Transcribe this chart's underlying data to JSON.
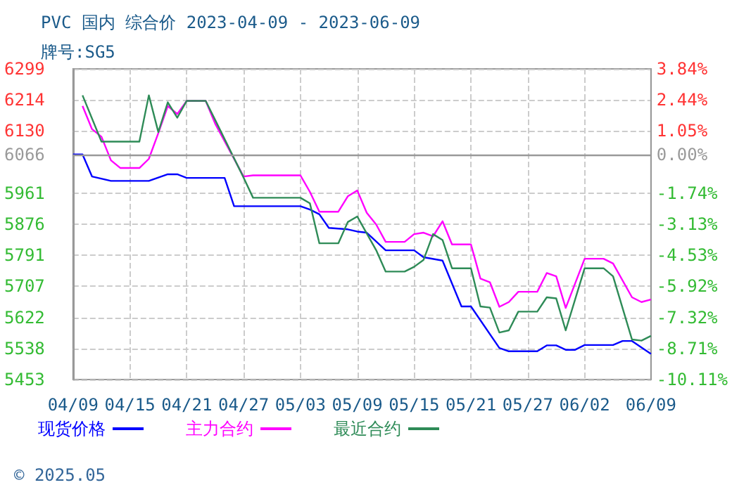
{
  "chart_data": {
    "type": "line",
    "title": "PVC 国内 综合价 2023-04-09 - 2023-06-09",
    "subtitle": "牌号:SG5",
    "xlim": [
      "2023-04-09",
      "2023-06-09"
    ],
    "xticks": [
      {
        "value": "2023-04-09",
        "label": "04/09"
      },
      {
        "value": "2023-04-15",
        "label": "04/15"
      },
      {
        "value": "2023-04-21",
        "label": "04/21"
      },
      {
        "value": "2023-04-27",
        "label": "04/27"
      },
      {
        "value": "2023-05-03",
        "label": "05/03"
      },
      {
        "value": "2023-05-09",
        "label": "05/09"
      },
      {
        "value": "2023-05-15",
        "label": "05/15"
      },
      {
        "value": "2023-05-21",
        "label": "05/21"
      },
      {
        "value": "2023-05-27",
        "label": "05/27"
      },
      {
        "value": "2023-06-02",
        "label": "06/02"
      },
      {
        "value": "2023-06-09",
        "label": "06/09"
      }
    ],
    "ylim": [
      5453,
      6299
    ],
    "yticks": [
      5453,
      5538,
      5622,
      5707,
      5791,
      5876,
      5961,
      6066,
      6130,
      6214,
      6299
    ],
    "y2lim": [
      -10.11,
      3.84
    ],
    "y2ticks": [
      {
        "value": -10.11,
        "label": "-10.11%"
      },
      {
        "value": -8.71,
        "label": "-8.71%"
      },
      {
        "value": -7.32,
        "label": "-7.32%"
      },
      {
        "value": -5.92,
        "label": "-5.92%"
      },
      {
        "value": -4.53,
        "label": "-4.53%"
      },
      {
        "value": -3.13,
        "label": "-3.13%"
      },
      {
        "value": -1.74,
        "label": "-1.74%"
      },
      {
        "value": 0,
        "label": "0.00%"
      },
      {
        "value": 1.05,
        "label": "1.05%"
      },
      {
        "value": 2.44,
        "label": "2.44%"
      },
      {
        "value": 3.84,
        "label": "3.84%"
      }
    ],
    "ref_lines": [
      {
        "axis": "y",
        "value": 6066,
        "color": "#999999"
      }
    ],
    "grid": true,
    "legend": "bottom",
    "marker": "none",
    "line_style": "solid",
    "annotations": [
      "© 2025.05"
    ],
    "series": [
      {
        "name": "现货价格",
        "color": "#0000ff",
        "x": [
          "2023-04-09",
          "2023-04-10",
          "2023-04-11",
          "2023-04-13",
          "2023-04-17",
          "2023-04-19",
          "2023-04-20",
          "2023-04-21",
          "2023-04-25",
          "2023-04-26",
          "2023-05-03",
          "2023-05-04",
          "2023-05-05",
          "2023-05-06",
          "2023-05-08",
          "2023-05-09",
          "2023-05-10",
          "2023-05-12",
          "2023-05-15",
          "2023-05-16",
          "2023-05-18",
          "2023-05-20",
          "2023-05-21",
          "2023-05-24",
          "2023-05-25",
          "2023-05-28",
          "2023-05-29",
          "2023-05-30",
          "2023-05-31",
          "2023-06-01",
          "2023-06-02",
          "2023-06-05",
          "2023-06-06",
          "2023-06-07",
          "2023-06-09"
        ],
        "values": [
          6066,
          6066,
          6006,
          5994,
          5994,
          6012,
          6012,
          6002,
          6002,
          5925,
          5925,
          5916,
          5903,
          5866,
          5862,
          5856,
          5853,
          5805,
          5805,
          5786,
          5777,
          5652,
          5652,
          5539,
          5530,
          5530,
          5546,
          5546,
          5534,
          5534,
          5547,
          5547,
          5558,
          5558,
          5523
        ]
      },
      {
        "name": "主力合约",
        "color": "#ff00ff",
        "x": [
          "2023-04-10",
          "2023-04-11",
          "2023-04-12",
          "2023-04-13",
          "2023-04-14",
          "2023-04-16",
          "2023-04-17",
          "2023-04-18",
          "2023-04-19",
          "2023-04-20",
          "2023-04-21",
          "2023-04-23",
          "2023-04-24",
          "2023-04-27",
          "2023-04-28",
          "2023-05-03",
          "2023-05-04",
          "2023-05-05",
          "2023-05-07",
          "2023-05-08",
          "2023-05-09",
          "2023-05-10",
          "2023-05-11",
          "2023-05-12",
          "2023-05-14",
          "2023-05-15",
          "2023-05-16",
          "2023-05-17",
          "2023-05-18",
          "2023-05-19",
          "2023-05-21",
          "2023-05-22",
          "2023-05-23",
          "2023-05-24",
          "2023-05-25",
          "2023-05-26",
          "2023-05-28",
          "2023-05-29",
          "2023-05-30",
          "2023-05-31",
          "2023-06-02",
          "2023-06-04",
          "2023-06-05",
          "2023-06-07",
          "2023-06-08",
          "2023-06-09"
        ],
        "values": [
          6198,
          6135,
          6114,
          6050,
          6029,
          6029,
          6054,
          6124,
          6198,
          6176,
          6212,
          6212,
          6150,
          6006,
          6009,
          6009,
          5964,
          5910,
          5910,
          5952,
          5968,
          5907,
          5875,
          5828,
          5828,
          5849,
          5853,
          5843,
          5884,
          5821,
          5821,
          5728,
          5718,
          5651,
          5664,
          5692,
          5692,
          5743,
          5734,
          5648,
          5782,
          5782,
          5769,
          5677,
          5664,
          5671
        ]
      },
      {
        "name": "最近合约",
        "color": "#2e8b57",
        "x": [
          "2023-04-10",
          "2023-04-12",
          "2023-04-16",
          "2023-04-17",
          "2023-04-18",
          "2023-04-19",
          "2023-04-20",
          "2023-04-21",
          "2023-04-23",
          "2023-04-24",
          "2023-04-27",
          "2023-04-28",
          "2023-05-03",
          "2023-05-04",
          "2023-05-05",
          "2023-05-07",
          "2023-05-08",
          "2023-05-09",
          "2023-05-10",
          "2023-05-11",
          "2023-05-12",
          "2023-05-14",
          "2023-05-15",
          "2023-05-16",
          "2023-05-17",
          "2023-05-18",
          "2023-05-19",
          "2023-05-21",
          "2023-05-22",
          "2023-05-23",
          "2023-05-24",
          "2023-05-25",
          "2023-05-26",
          "2023-05-28",
          "2023-05-29",
          "2023-05-30",
          "2023-05-31",
          "2023-06-02",
          "2023-06-04",
          "2023-06-05",
          "2023-06-07",
          "2023-06-08",
          "2023-06-09"
        ],
        "values": [
          6227,
          6101,
          6101,
          6227,
          6127,
          6208,
          6166,
          6212,
          6212,
          6160,
          6003,
          5948,
          5948,
          5933,
          5824,
          5824,
          5882,
          5897,
          5851,
          5805,
          5747,
          5747,
          5760,
          5779,
          5849,
          5833,
          5756,
          5756,
          5652,
          5649,
          5581,
          5587,
          5638,
          5638,
          5677,
          5674,
          5587,
          5756,
          5756,
          5734,
          5562,
          5559,
          5572
        ]
      }
    ]
  }
}
